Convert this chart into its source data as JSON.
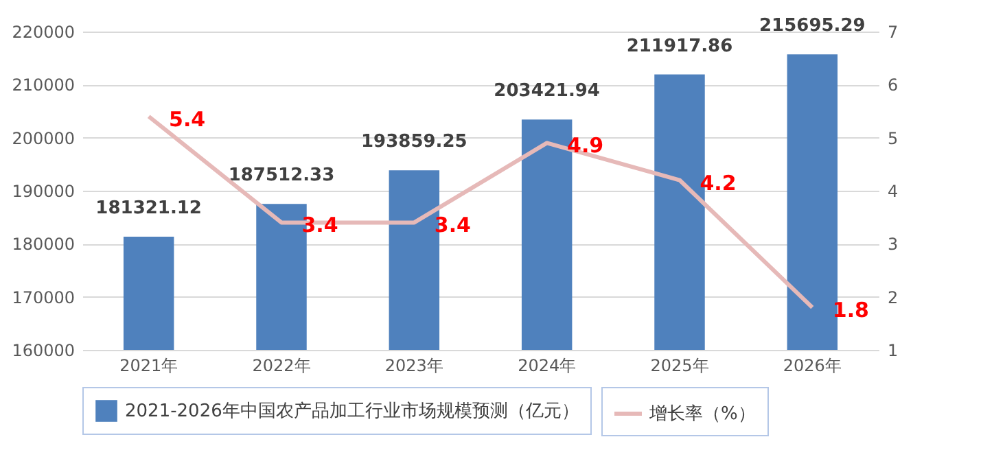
{
  "chart_data": {
    "type": "bar",
    "categories": [
      "2021年",
      "2022年",
      "2023年",
      "2024年",
      "2025年",
      "2026年"
    ],
    "series": [
      {
        "name": "2021-2026年中国农产品加工行业市场规模预测（亿元）",
        "type": "bar",
        "color": "#4f81bd",
        "values": [
          181321.12,
          187512.33,
          193859.25,
          203421.94,
          211917.86,
          215695.29
        ]
      },
      {
        "name": "增长率（%）",
        "type": "line",
        "axis": "y2",
        "color": "#e6b9b8",
        "values": [
          5.4,
          3.4,
          3.4,
          4.9,
          4.2,
          1.8
        ]
      }
    ],
    "ylim": [
      160000,
      220000
    ],
    "yticks": [
      160000,
      170000,
      180000,
      190000,
      200000,
      210000,
      220000
    ],
    "y2lim": [
      1,
      7
    ],
    "y2ticks": [
      1,
      2,
      3,
      4,
      5,
      6,
      7
    ],
    "data_labels": true,
    "grid": "y",
    "legend": "bottom",
    "marker": "none",
    "line_style": "solid"
  }
}
